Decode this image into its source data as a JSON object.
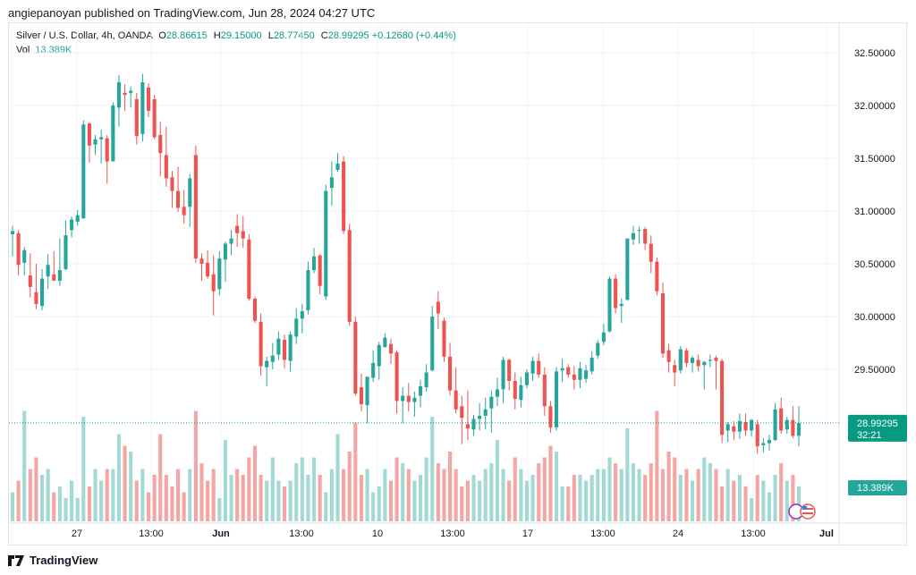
{
  "header": {
    "publisher_line": "angiepanoyan published on TradingView.com, Jun 28, 2024 04:27 UTC"
  },
  "legend": {
    "symbol": "Silver / U.S. Dollar, 4h, OANDA",
    "o_label": "O",
    "open": "28.86615",
    "h_label": "H",
    "high": "29.15000",
    "l_label": "L",
    "low": "28.77450",
    "c_label": "C",
    "close": "28.99295",
    "change": "+0.12680 (+0.44%)",
    "vol_label": "Vol",
    "vol_value": "13.389K"
  },
  "footer": {
    "brand": "TradingView"
  },
  "colors": {
    "up": "#26a69a",
    "down": "#ef5350",
    "up_vol": "#a3d9d3",
    "down_vol": "#f4a6a4",
    "badge": "#089981"
  },
  "chart_data": {
    "type": "candlestick",
    "price_axis": {
      "ticks": [
        "32.50000",
        "32.00000",
        "31.50000",
        "31.00000",
        "30.50000",
        "30.00000",
        "29.50000"
      ],
      "range": [
        28.0,
        32.65
      ]
    },
    "time_axis": {
      "ticks": [
        "27",
        "13:00",
        "Jun",
        "13:00",
        "10",
        "13:00",
        "17",
        "13:00",
        "24",
        "13:00",
        "Jul"
      ]
    },
    "last_price": "28.99295",
    "countdown": "32:21",
    "volume_badge": "13.389K",
    "candles": [
      [
        30.78,
        30.86,
        30.57,
        30.81
      ],
      [
        30.79,
        30.82,
        30.39,
        30.49
      ],
      [
        30.51,
        30.66,
        30.39,
        30.63
      ],
      [
        30.39,
        30.6,
        30.18,
        30.28
      ],
      [
        30.23,
        30.5,
        30.07,
        30.12
      ],
      [
        30.1,
        30.45,
        30.06,
        30.36
      ],
      [
        30.38,
        30.59,
        30.26,
        30.49
      ],
      [
        30.4,
        30.62,
        30.35,
        30.34
      ],
      [
        30.34,
        30.74,
        30.29,
        30.44
      ],
      [
        30.45,
        30.91,
        30.44,
        30.77
      ],
      [
        30.82,
        30.95,
        30.75,
        30.92
      ],
      [
        30.9,
        31.01,
        30.86,
        30.96
      ],
      [
        30.93,
        31.86,
        30.93,
        31.82
      ],
      [
        31.83,
        31.84,
        31.46,
        31.62
      ],
      [
        31.63,
        31.72,
        31.53,
        31.68
      ],
      [
        31.68,
        31.77,
        31.45,
        31.7
      ],
      [
        31.69,
        31.72,
        31.26,
        31.47
      ],
      [
        31.47,
        32.03,
        31.47,
        32.0
      ],
      [
        31.98,
        32.29,
        31.8,
        32.22
      ],
      [
        32.12,
        32.2,
        31.95,
        32.1
      ],
      [
        32.12,
        32.18,
        31.98,
        32.14
      ],
      [
        32.06,
        32.12,
        31.63,
        31.71
      ],
      [
        31.73,
        32.3,
        31.66,
        32.22
      ],
      [
        32.17,
        32.21,
        31.89,
        31.95
      ],
      [
        32.06,
        32.1,
        31.68,
        31.7
      ],
      [
        31.72,
        31.85,
        31.33,
        31.55
      ],
      [
        31.53,
        31.8,
        31.23,
        31.31
      ],
      [
        31.32,
        31.38,
        31.03,
        31.19
      ],
      [
        31.19,
        31.42,
        30.99,
        31.03
      ],
      [
        31.04,
        31.2,
        30.88,
        30.96
      ],
      [
        31.04,
        31.35,
        30.85,
        31.31
      ],
      [
        31.53,
        31.62,
        30.51,
        30.55
      ],
      [
        30.55,
        30.6,
        30.34,
        30.5
      ],
      [
        30.51,
        30.63,
        30.36,
        30.38
      ],
      [
        30.4,
        30.58,
        30.01,
        30.24
      ],
      [
        30.26,
        30.62,
        30.2,
        30.55
      ],
      [
        30.54,
        30.71,
        30.33,
        30.69
      ],
      [
        30.69,
        30.82,
        30.58,
        30.74
      ],
      [
        30.86,
        30.97,
        30.66,
        30.79
      ],
      [
        30.81,
        30.95,
        30.65,
        30.74
      ],
      [
        30.73,
        30.78,
        30.15,
        30.17
      ],
      [
        30.17,
        30.19,
        29.94,
        29.96
      ],
      [
        29.95,
        30.03,
        29.44,
        29.53
      ],
      [
        29.52,
        29.62,
        29.34,
        29.58
      ],
      [
        29.57,
        29.75,
        29.5,
        29.63
      ],
      [
        29.64,
        29.86,
        29.59,
        29.79
      ],
      [
        29.78,
        29.83,
        29.51,
        29.59
      ],
      [
        29.58,
        29.86,
        29.48,
        29.83
      ],
      [
        29.81,
        30.08,
        29.74,
        29.98
      ],
      [
        29.98,
        30.12,
        29.84,
        30.05
      ],
      [
        30.06,
        30.52,
        30.02,
        30.44
      ],
      [
        30.44,
        30.65,
        30.41,
        30.57
      ],
      [
        30.58,
        30.59,
        30.21,
        30.29
      ],
      [
        30.19,
        31.25,
        30.16,
        31.19
      ],
      [
        31.22,
        31.47,
        31.05,
        31.32
      ],
      [
        31.39,
        31.55,
        31.37,
        31.45
      ],
      [
        31.47,
        31.52,
        30.78,
        30.81
      ],
      [
        30.82,
        30.88,
        29.91,
        29.95
      ],
      [
        29.95,
        30.0,
        29.25,
        29.27
      ],
      [
        29.33,
        29.46,
        29.1,
        29.17
      ],
      [
        29.16,
        29.42,
        28.99,
        29.43
      ],
      [
        29.42,
        29.68,
        29.38,
        29.56
      ],
      [
        29.53,
        29.76,
        29.4,
        29.73
      ],
      [
        29.71,
        29.84,
        29.71,
        29.8
      ],
      [
        29.74,
        29.79,
        29.55,
        29.65
      ],
      [
        29.66,
        29.68,
        29.08,
        29.2
      ],
      [
        29.2,
        29.33,
        28.99,
        29.25
      ],
      [
        29.25,
        29.37,
        29.1,
        29.19
      ],
      [
        29.19,
        29.29,
        29.05,
        29.23
      ],
      [
        29.25,
        29.4,
        29.14,
        29.34
      ],
      [
        29.33,
        29.55,
        29.29,
        29.47
      ],
      [
        29.49,
        30.1,
        29.48,
        30.0
      ],
      [
        30.14,
        30.24,
        29.88,
        30.03
      ],
      [
        29.96,
        29.99,
        29.57,
        29.62
      ],
      [
        29.62,
        29.75,
        29.25,
        29.3
      ],
      [
        29.3,
        29.52,
        29.08,
        29.12
      ],
      [
        29.15,
        29.25,
        28.79,
        29.04
      ],
      [
        28.98,
        29.3,
        28.83,
        28.94
      ],
      [
        28.93,
        29.07,
        28.87,
        29.03
      ],
      [
        29.03,
        29.18,
        28.92,
        29.06
      ],
      [
        29.06,
        29.23,
        28.93,
        29.12
      ],
      [
        29.13,
        29.3,
        28.9,
        29.24
      ],
      [
        29.24,
        29.42,
        29.15,
        29.31
      ],
      [
        29.31,
        29.62,
        29.18,
        29.59
      ],
      [
        29.59,
        29.6,
        29.3,
        29.39
      ],
      [
        29.39,
        29.47,
        29.12,
        29.22
      ],
      [
        29.21,
        29.43,
        29.14,
        29.35
      ],
      [
        29.35,
        29.5,
        29.32,
        29.47
      ],
      [
        29.46,
        29.62,
        29.39,
        29.58
      ],
      [
        29.58,
        29.65,
        29.42,
        29.45
      ],
      [
        29.45,
        29.52,
        29.06,
        29.15
      ],
      [
        29.15,
        29.2,
        28.9,
        28.95
      ],
      [
        28.95,
        29.52,
        28.92,
        29.48
      ],
      [
        29.49,
        29.6,
        29.38,
        29.51
      ],
      [
        29.52,
        29.55,
        29.42,
        29.45
      ],
      [
        29.45,
        29.53,
        29.31,
        29.4
      ],
      [
        29.4,
        29.57,
        29.32,
        29.51
      ],
      [
        29.41,
        29.54,
        29.37,
        29.49
      ],
      [
        29.48,
        29.67,
        29.45,
        29.61
      ],
      [
        29.63,
        29.78,
        29.6,
        29.75
      ],
      [
        29.76,
        29.93,
        29.73,
        29.85
      ],
      [
        29.86,
        30.38,
        29.85,
        30.36
      ],
      [
        30.36,
        30.4,
        30.03,
        30.08
      ],
      [
        30.1,
        30.17,
        29.94,
        30.12
      ],
      [
        30.16,
        30.73,
        30.15,
        30.74
      ],
      [
        30.73,
        30.86,
        30.68,
        30.79
      ],
      [
        30.82,
        30.85,
        30.69,
        30.82
      ],
      [
        30.83,
        30.85,
        30.63,
        30.69
      ],
      [
        30.69,
        30.77,
        30.41,
        30.52
      ],
      [
        30.52,
        30.56,
        30.2,
        30.24
      ],
      [
        30.22,
        30.32,
        29.61,
        29.65
      ],
      [
        29.68,
        29.74,
        29.47,
        29.57
      ],
      [
        29.54,
        29.59,
        29.34,
        29.47
      ],
      [
        29.49,
        29.72,
        29.46,
        29.69
      ],
      [
        29.68,
        29.7,
        29.52,
        29.56
      ],
      [
        29.56,
        29.63,
        29.47,
        29.61
      ],
      [
        29.59,
        29.64,
        29.48,
        29.53
      ],
      [
        29.54,
        29.58,
        29.31,
        29.57
      ],
      [
        29.58,
        29.64,
        29.52,
        29.59
      ],
      [
        29.61,
        29.63,
        29.31,
        29.58
      ],
      [
        29.58,
        29.6,
        28.8,
        28.88
      ],
      [
        28.92,
        29.0,
        28.81,
        28.98
      ],
      [
        28.96,
        29.01,
        28.83,
        28.91
      ],
      [
        28.91,
        29.08,
        28.84,
        29.01
      ],
      [
        29.0,
        29.08,
        28.87,
        28.92
      ],
      [
        28.92,
        29.03,
        28.86,
        29.02
      ],
      [
        28.98,
        29.02,
        28.7,
        28.77
      ],
      [
        28.78,
        28.85,
        28.71,
        28.8
      ],
      [
        28.8,
        28.88,
        28.73,
        28.83
      ],
      [
        28.83,
        29.18,
        28.82,
        29.12
      ],
      [
        29.13,
        29.23,
        28.89,
        28.92
      ],
      [
        28.93,
        29.05,
        28.89,
        29.02
      ],
      [
        29.02,
        29.15,
        28.85,
        28.87
      ],
      [
        28.87,
        29.15,
        28.77,
        28.99
      ]
    ],
    "volumes": [
      0.25,
      0.35,
      0.95,
      0.45,
      0.55,
      0.4,
      0.45,
      0.25,
      0.3,
      0.2,
      0.35,
      0.2,
      0.9,
      0.3,
      0.45,
      0.35,
      0.45,
      0.45,
      0.75,
      0.65,
      0.6,
      0.35,
      0.45,
      0.25,
      0.4,
      0.75,
      0.4,
      0.3,
      0.45,
      0.25,
      0.45,
      0.95,
      0.5,
      0.35,
      0.45,
      0.2,
      0.7,
      0.4,
      0.45,
      0.4,
      0.55,
      0.65,
      0.4,
      0.35,
      0.55,
      0.35,
      0.3,
      0.35,
      0.5,
      0.55,
      0.4,
      0.55,
      0.4,
      0.25,
      0.45,
      0.75,
      0.45,
      0.6,
      0.85,
      0.4,
      0.45,
      0.25,
      0.3,
      0.45,
      0.35,
      0.55,
      0.5,
      0.45,
      0.35,
      0.4,
      0.55,
      0.9,
      0.5,
      0.45,
      0.6,
      0.45,
      0.3,
      0.35,
      0.4,
      0.35,
      0.45,
      0.5,
      0.7,
      0.45,
      0.35,
      0.55,
      0.45,
      0.35,
      0.4,
      0.5,
      0.55,
      0.65,
      0.6,
      0.3,
      0.3,
      0.4,
      0.4,
      0.35,
      0.4,
      0.45,
      0.45,
      0.55,
      0.5,
      0.45,
      0.8,
      0.5,
      0.45,
      0.4,
      0.5,
      0.95,
      0.45,
      0.6,
      0.55,
      0.4,
      0.45,
      0.35,
      0.45,
      0.55,
      0.5,
      0.45,
      0.3,
      0.45,
      0.35,
      0.4,
      0.3,
      0.2,
      0.4,
      0.35,
      0.25,
      0.4,
      0.5,
      0.35,
      0.4,
      0.3
    ]
  }
}
